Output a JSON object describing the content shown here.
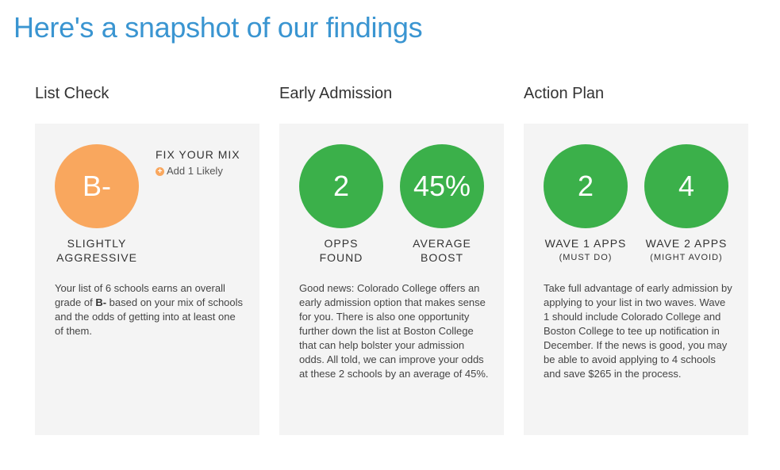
{
  "page_title": "Here's a snapshot of our findings",
  "list_check": {
    "title": "List Check",
    "grade": "B-",
    "grade_label_line1": "SLIGHTLY",
    "grade_label_line2": "AGGRESSIVE",
    "fix_title": "FIX YOUR MIX",
    "fix_action": "Add 1 Likely",
    "desc_pre": "Your list of 6 schools earns an overall grade of ",
    "desc_grade": "B-",
    "desc_post": " based on your mix of schools and the odds of getting into at least one of them.",
    "colors": {
      "circle": "#f9a75e"
    }
  },
  "early_admission": {
    "title": "Early Admission",
    "stat1_value": "2",
    "stat1_line1": "OPPS",
    "stat1_line2": "FOUND",
    "stat2_value": "45%",
    "stat2_line1": "AVERAGE",
    "stat2_line2": "BOOST",
    "desc": "Good news: Colorado College offers an early admission option that makes sense for you. There is also one opportunity further down the list at Boston College that can help bolster your admission odds. All told, we can improve your odds at these 2 schools by an average of 45%.",
    "colors": {
      "circle": "#3bb04a"
    }
  },
  "action_plan": {
    "title": "Action Plan",
    "stat1_value": "2",
    "stat1_label": "WAVE 1 APPS",
    "stat1_sub": "(MUST DO)",
    "stat2_value": "4",
    "stat2_label": "WAVE 2 APPS",
    "stat2_sub": "(MIGHT AVOID)",
    "desc": "Take full advantage of early admission by applying to your list in two waves. Wave 1 should include Colorado College and Boston College to tee up notification in December. If the news is good, you may be able to avoid applying to 4 schools and save $265 in the process.",
    "colors": {
      "circle": "#3bb04a"
    }
  },
  "colors": {
    "title": "#3a95d1",
    "card_bg": "#f4f4f4"
  }
}
